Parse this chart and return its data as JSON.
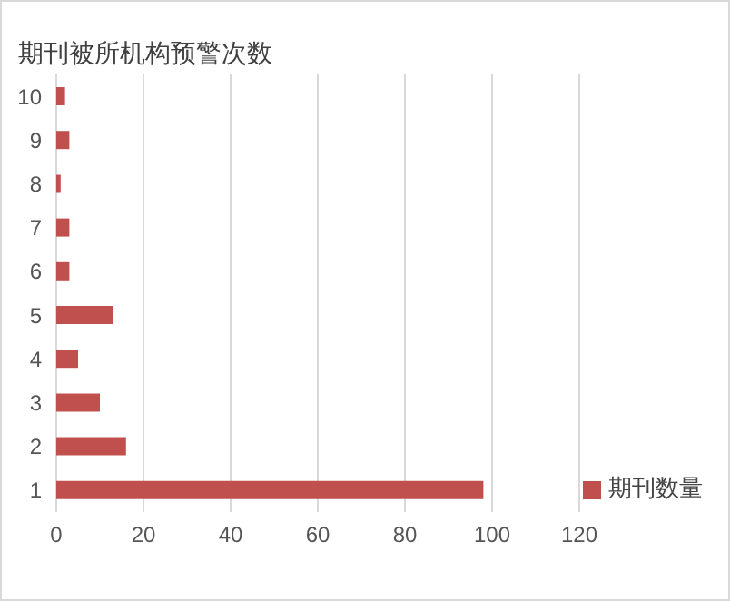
{
  "chart_data": {
    "type": "bar",
    "orientation": "horizontal",
    "title": "期刊被所机构预警次数",
    "categories": [
      "10",
      "9",
      "8",
      "7",
      "6",
      "5",
      "4",
      "3",
      "2",
      "1"
    ],
    "series": [
      {
        "name": "期刊数量",
        "color": "#c0504d",
        "values": [
          2,
          3,
          1,
          3,
          3,
          13,
          5,
          10,
          16,
          98
        ]
      }
    ],
    "xlim": [
      0,
      120
    ],
    "xticks": [
      0,
      20,
      40,
      60,
      80,
      100,
      120
    ],
    "grid": "x",
    "legend": "bottom right"
  }
}
